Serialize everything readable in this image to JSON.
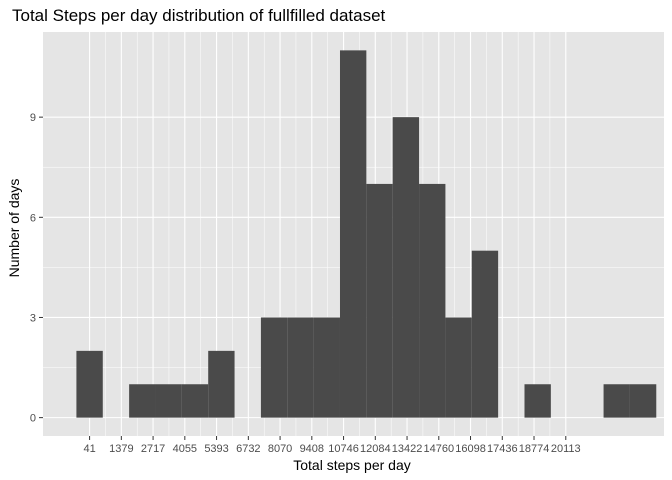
{
  "chart_data": {
    "type": "bar",
    "title": "Total Steps per day distribution of fullfilled dataset",
    "xlabel": "Total steps per day",
    "ylabel": "Number of days",
    "x_ticks": [
      41,
      1379,
      2717,
      4055,
      5393,
      6732,
      8070,
      9408,
      10746,
      12084,
      13422,
      14760,
      16098,
      17436,
      18774,
      20113
    ],
    "y_ticks": [
      0,
      3,
      6,
      9
    ],
    "xlim": [
      -1923,
      24253
    ],
    "ylim": [
      -0.55,
      11.55
    ],
    "bin_width": 1111,
    "bins": [
      {
        "x": 41,
        "count": 2
      },
      {
        "x": 1152,
        "count": 0
      },
      {
        "x": 2263,
        "count": 1
      },
      {
        "x": 3374,
        "count": 1
      },
      {
        "x": 4485,
        "count": 1
      },
      {
        "x": 5596,
        "count": 2
      },
      {
        "x": 6707,
        "count": 0
      },
      {
        "x": 7818,
        "count": 3
      },
      {
        "x": 8929,
        "count": 3
      },
      {
        "x": 10040,
        "count": 3
      },
      {
        "x": 11151,
        "count": 11
      },
      {
        "x": 12262,
        "count": 7
      },
      {
        "x": 13373,
        "count": 9
      },
      {
        "x": 14484,
        "count": 7
      },
      {
        "x": 15595,
        "count": 3
      },
      {
        "x": 16706,
        "count": 5
      },
      {
        "x": 17817,
        "count": 0
      },
      {
        "x": 18928,
        "count": 1
      },
      {
        "x": 20039,
        "count": 0
      },
      {
        "x": 21150,
        "count": 0
      },
      {
        "x": 22261,
        "count": 1
      },
      {
        "x": 23372,
        "count": 1
      }
    ],
    "bar_color": "#4a4a4a",
    "panel_color": "#e5e5e5",
    "grid_color": "#ffffff",
    "grid": true,
    "legend": "none"
  }
}
